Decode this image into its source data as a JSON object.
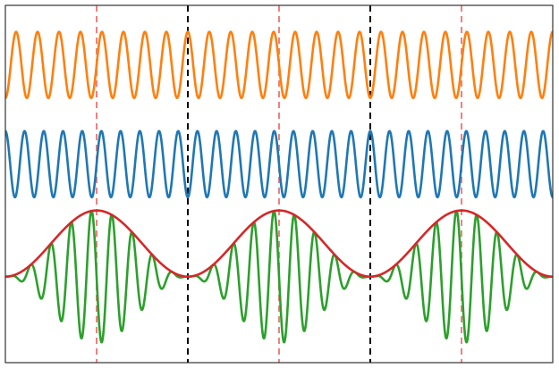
{
  "chart_data": {
    "type": "line",
    "title": "",
    "xlabel": "",
    "ylabel": "",
    "grid": false,
    "legend": "none",
    "xlim": [
      0,
      3
    ],
    "ylim": [
      -1.3,
      4.1
    ],
    "period_boundaries": [
      1,
      2
    ],
    "period_midpoints": [
      0.5,
      1.5,
      2.5
    ],
    "series": [
      {
        "color": "#ff7f0e",
        "shape": "sine",
        "cycles_per_period": 8.5,
        "center": 3.2,
        "amplitude": 0.5,
        "phase_at_start": "trough"
      },
      {
        "color": "#1f77b4",
        "shape": "sine",
        "cycles_per_period": 9.5,
        "center": 1.7,
        "amplitude": 0.5,
        "phase_at_start": "peak"
      },
      {
        "color": "#2ca02c",
        "shape": "amplitude-modulated",
        "carrier_cycles_per_period": 9,
        "center": 0,
        "amplitude": 1,
        "envelope_peak_at": "period_midpoint"
      },
      {
        "color": "#d62728",
        "shape": "envelope",
        "cycles_per_period": 1,
        "center": 0,
        "amplitude": 1,
        "min": 0,
        "max": 1
      }
    ],
    "boundary_line_color": "#000000",
    "midpoint_line_color": "#f08080"
  }
}
